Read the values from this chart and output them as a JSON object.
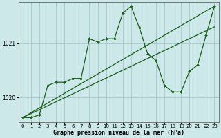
{
  "xlabel": "Graphe pression niveau de la mer (hPa)",
  "background_color": "#cce8e8",
  "grid_color": "#aacccc",
  "line_color": "#1a5c1a",
  "xlim": [
    -0.5,
    23.5
  ],
  "ylim": [
    1019.55,
    1021.75
  ],
  "ylim_data": [
    1019.55,
    1021.75
  ],
  "yticks": [
    1020,
    1021
  ],
  "xticks": [
    0,
    1,
    2,
    3,
    4,
    5,
    6,
    7,
    8,
    9,
    10,
    11,
    12,
    13,
    14,
    15,
    16,
    17,
    18,
    19,
    20,
    21,
    22,
    23
  ],
  "trend1_x": [
    0,
    23
  ],
  "trend1_y": [
    1019.63,
    1021.68
  ],
  "trend2_x": [
    0,
    23
  ],
  "trend2_y": [
    1019.63,
    1021.3
  ],
  "series_x": [
    0,
    1,
    2,
    3,
    4,
    5,
    6,
    7,
    8,
    9,
    10,
    11,
    12,
    13,
    14,
    15,
    16,
    17,
    18,
    19,
    20,
    21,
    22,
    23
  ],
  "series_y": [
    1019.63,
    1019.63,
    1019.68,
    1020.22,
    1020.28,
    1020.28,
    1020.35,
    1020.35,
    1021.08,
    1021.02,
    1021.08,
    1021.08,
    1021.55,
    1021.68,
    1021.28,
    1020.8,
    1020.68,
    1020.22,
    1020.1,
    1020.1,
    1020.48,
    1020.6,
    1021.15,
    1021.68
  ]
}
